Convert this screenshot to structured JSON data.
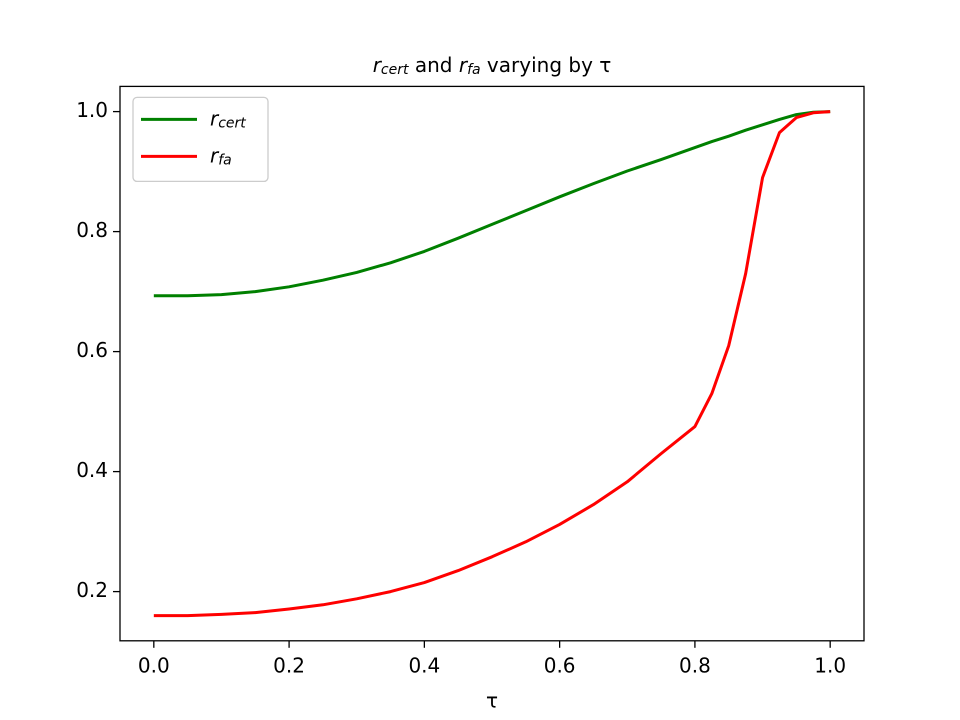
{
  "chart_data": {
    "type": "line",
    "title": [
      {
        "text": "r",
        "style": "math"
      },
      {
        "text": "cert",
        "style": "sub"
      },
      {
        "text": " and ",
        "style": "plain"
      },
      {
        "text": "r",
        "style": "math"
      },
      {
        "text": "fa",
        "style": "sub"
      },
      {
        "text": " varying by τ",
        "style": "plain"
      }
    ],
    "x_label": "τ",
    "x": [
      0,
      0.05,
      0.1,
      0.15,
      0.2,
      0.25,
      0.3,
      0.35,
      0.4,
      0.45,
      0.5,
      0.55,
      0.6,
      0.65,
      0.7,
      0.75,
      0.8,
      0.825,
      0.85,
      0.875,
      0.9,
      0.925,
      0.95,
      0.975,
      1.0
    ],
    "series": [
      {
        "name": [
          {
            "text": "r",
            "style": "math"
          },
          {
            "text": "cert",
            "style": "sub"
          }
        ],
        "color": "#008000",
        "values": [
          0.693,
          0.693,
          0.695,
          0.7,
          0.708,
          0.719,
          0.732,
          0.748,
          0.767,
          0.789,
          0.812,
          0.835,
          0.858,
          0.88,
          0.901,
          0.92,
          0.94,
          0.95,
          0.959,
          0.969,
          0.978,
          0.987,
          0.995,
          0.999,
          1.0
        ]
      },
      {
        "name": [
          {
            "text": "r",
            "style": "math"
          },
          {
            "text": "fa",
            "style": "sub"
          }
        ],
        "color": "#ff0000",
        "values": [
          0.16,
          0.16,
          0.162,
          0.165,
          0.171,
          0.178,
          0.188,
          0.2,
          0.215,
          0.235,
          0.258,
          0.283,
          0.312,
          0.345,
          0.383,
          0.43,
          0.475,
          0.53,
          0.61,
          0.73,
          0.89,
          0.965,
          0.99,
          0.998,
          1.0
        ]
      }
    ],
    "xlim": [
      -0.05,
      1.05
    ],
    "xticks": [
      {
        "value": 0,
        "label": "0.0"
      },
      0.2,
      0.4,
      0.6,
      0.8,
      {
        "value": 1,
        "label": "1.0"
      }
    ],
    "ylim": [
      0.118,
      1.042
    ],
    "yticks": [
      0.2,
      0.4,
      0.6,
      0.8,
      {
        "value": 1,
        "label": "1.0"
      }
    ],
    "grid": false,
    "legend": "upper-left"
  }
}
